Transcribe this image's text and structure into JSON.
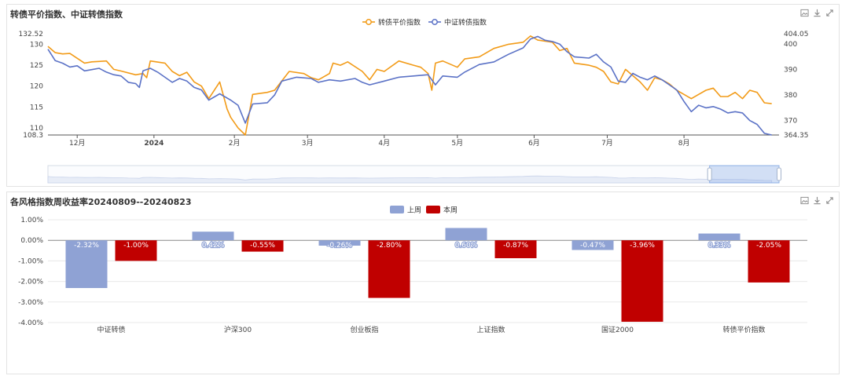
{
  "panel1": {
    "title": "转债平价指数、中证转债指数",
    "tools": [
      "image-icon",
      "download-icon",
      "expand-icon"
    ]
  },
  "panel2": {
    "title": "各风格指数周收益率20240809--20240823",
    "tools": [
      "image-icon",
      "download-icon",
      "expand-icon"
    ]
  },
  "chart_data": [
    {
      "type": "line",
      "legend_position": "top-center",
      "series": [
        {
          "name": "转债平价指数",
          "axis": "left",
          "color": "#f29b18",
          "points": [
            [
              0,
              129.5
            ],
            [
              0.01,
              128.0
            ],
            [
              0.02,
              127.7
            ],
            [
              0.03,
              127.8
            ],
            [
              0.05,
              125.5
            ],
            [
              0.06,
              125.8
            ],
            [
              0.08,
              126.0
            ],
            [
              0.09,
              124.0
            ],
            [
              0.1,
              123.6
            ],
            [
              0.12,
              122.7
            ],
            [
              0.13,
              123.0
            ],
            [
              0.135,
              122.0
            ],
            [
              0.14,
              126.0
            ],
            [
              0.16,
              125.5
            ],
            [
              0.17,
              123.5
            ],
            [
              0.18,
              122.5
            ],
            [
              0.19,
              123.3
            ],
            [
              0.2,
              121.0
            ],
            [
              0.21,
              120.0
            ],
            [
              0.22,
              117.0
            ],
            [
              0.235,
              121.0
            ],
            [
              0.245,
              114.5
            ],
            [
              0.25,
              112.5
            ],
            [
              0.26,
              110.0
            ],
            [
              0.27,
              108.3
            ],
            [
              0.28,
              118.0
            ],
            [
              0.3,
              118.5
            ],
            [
              0.31,
              119.0
            ],
            [
              0.33,
              123.5
            ],
            [
              0.35,
              123.0
            ],
            [
              0.36,
              122.0
            ],
            [
              0.37,
              121.5
            ],
            [
              0.385,
              123.0
            ],
            [
              0.39,
              125.5
            ],
            [
              0.4,
              125.0
            ],
            [
              0.41,
              125.8
            ],
            [
              0.43,
              123.5
            ],
            [
              0.44,
              121.5
            ],
            [
              0.45,
              124.0
            ],
            [
              0.46,
              123.5
            ],
            [
              0.48,
              126.0
            ],
            [
              0.5,
              125.0
            ],
            [
              0.51,
              124.5
            ],
            [
              0.52,
              123.0
            ],
            [
              0.525,
              119.0
            ],
            [
              0.53,
              125.5
            ],
            [
              0.54,
              126.0
            ],
            [
              0.56,
              124.5
            ],
            [
              0.57,
              126.5
            ],
            [
              0.59,
              127.0
            ],
            [
              0.6,
              128.0
            ],
            [
              0.61,
              129.0
            ],
            [
              0.63,
              130.0
            ],
            [
              0.65,
              130.5
            ],
            [
              0.66,
              132.0
            ],
            [
              0.67,
              131.0
            ],
            [
              0.69,
              130.5
            ],
            [
              0.7,
              128.5
            ],
            [
              0.71,
              129.0
            ],
            [
              0.72,
              125.5
            ],
            [
              0.74,
              125.0
            ],
            [
              0.75,
              124.5
            ],
            [
              0.76,
              123.5
            ],
            [
              0.77,
              121.0
            ],
            [
              0.78,
              120.5
            ],
            [
              0.79,
              124.0
            ],
            [
              0.8,
              122.5
            ],
            [
              0.81,
              121.0
            ],
            [
              0.82,
              119.0
            ],
            [
              0.83,
              122.0
            ],
            [
              0.84,
              121.5
            ],
            [
              0.85,
              120.5
            ],
            [
              0.86,
              119.0
            ],
            [
              0.87,
              118.0
            ],
            [
              0.88,
              117.0
            ],
            [
              0.89,
              118.0
            ],
            [
              0.9,
              119.0
            ],
            [
              0.91,
              119.5
            ],
            [
              0.92,
              117.5
            ],
            [
              0.93,
              117.5
            ],
            [
              0.94,
              118.5
            ],
            [
              0.95,
              117.0
            ],
            [
              0.96,
              119.0
            ],
            [
              0.97,
              118.5
            ],
            [
              0.98,
              116.0
            ],
            [
              0.99,
              115.8
            ]
          ]
        },
        {
          "name": "中证转债指数",
          "axis": "right",
          "color": "#5b72c6",
          "points": [
            [
              0,
              398.0
            ],
            [
              0.01,
              393.5
            ],
            [
              0.02,
              392.5
            ],
            [
              0.03,
              391.0
            ],
            [
              0.04,
              391.5
            ],
            [
              0.05,
              389.5
            ],
            [
              0.06,
              390.0
            ],
            [
              0.07,
              390.5
            ],
            [
              0.08,
              389.0
            ],
            [
              0.09,
              388.0
            ],
            [
              0.1,
              387.5
            ],
            [
              0.11,
              385.0
            ],
            [
              0.12,
              384.5
            ],
            [
              0.125,
              383.0
            ],
            [
              0.13,
              389.5
            ],
            [
              0.14,
              390.5
            ],
            [
              0.15,
              389.0
            ],
            [
              0.16,
              387.0
            ],
            [
              0.17,
              385.0
            ],
            [
              0.18,
              386.5
            ],
            [
              0.19,
              385.5
            ],
            [
              0.2,
              383.0
            ],
            [
              0.21,
              382.0
            ],
            [
              0.22,
              378.0
            ],
            [
              0.235,
              380.5
            ],
            [
              0.25,
              378.0
            ],
            [
              0.26,
              376.0
            ],
            [
              0.27,
              369.0
            ],
            [
              0.28,
              376.5
            ],
            [
              0.3,
              377.0
            ],
            [
              0.31,
              380.0
            ],
            [
              0.32,
              385.5
            ],
            [
              0.34,
              387.0
            ],
            [
              0.36,
              386.5
            ],
            [
              0.37,
              385.0
            ],
            [
              0.385,
              386.0
            ],
            [
              0.4,
              385.5
            ],
            [
              0.42,
              386.5
            ],
            [
              0.43,
              385.0
            ],
            [
              0.44,
              384.0
            ],
            [
              0.46,
              385.5
            ],
            [
              0.48,
              387.0
            ],
            [
              0.5,
              387.5
            ],
            [
              0.52,
              388.0
            ],
            [
              0.53,
              384.0
            ],
            [
              0.54,
              387.5
            ],
            [
              0.56,
              387.0
            ],
            [
              0.57,
              389.0
            ],
            [
              0.59,
              392.0
            ],
            [
              0.61,
              393.0
            ],
            [
              0.63,
              396.0
            ],
            [
              0.65,
              398.5
            ],
            [
              0.66,
              402.0
            ],
            [
              0.67,
              403.0
            ],
            [
              0.68,
              401.5
            ],
            [
              0.69,
              401.0
            ],
            [
              0.7,
              400.0
            ],
            [
              0.71,
              397.0
            ],
            [
              0.72,
              395.0
            ],
            [
              0.74,
              394.5
            ],
            [
              0.75,
              396.0
            ],
            [
              0.76,
              393.0
            ],
            [
              0.77,
              391.0
            ],
            [
              0.78,
              385.5
            ],
            [
              0.79,
              385.0
            ],
            [
              0.8,
              388.5
            ],
            [
              0.81,
              387.0
            ],
            [
              0.82,
              386.0
            ],
            [
              0.83,
              387.5
            ],
            [
              0.84,
              386.0
            ],
            [
              0.85,
              384.0
            ],
            [
              0.86,
              382.0
            ],
            [
              0.87,
              377.5
            ],
            [
              0.88,
              373.5
            ],
            [
              0.89,
              376.0
            ],
            [
              0.9,
              375.0
            ],
            [
              0.91,
              375.5
            ],
            [
              0.92,
              374.5
            ],
            [
              0.93,
              373.0
            ],
            [
              0.94,
              373.5
            ],
            [
              0.95,
              373.0
            ],
            [
              0.96,
              370.0
            ],
            [
              0.97,
              368.5
            ],
            [
              0.98,
              365.0
            ],
            [
              0.99,
              364.35
            ]
          ]
        }
      ],
      "x_ticks": [
        {
          "label": "12月",
          "pos": 0.04,
          "bold": false
        },
        {
          "label": "2024",
          "pos": 0.145,
          "bold": true
        },
        {
          "label": "2月",
          "pos": 0.255,
          "bold": false
        },
        {
          "label": "3月",
          "pos": 0.355,
          "bold": false
        },
        {
          "label": "4月",
          "pos": 0.46,
          "bold": false
        },
        {
          "label": "5月",
          "pos": 0.56,
          "bold": false
        },
        {
          "label": "6月",
          "pos": 0.665,
          "bold": false
        },
        {
          "label": "7月",
          "pos": 0.765,
          "bold": false
        },
        {
          "label": "8月",
          "pos": 0.87,
          "bold": false
        }
      ],
      "y_left": {
        "min": 108.3,
        "max": 132.52,
        "ticks": [
          "108.3",
          "110",
          "115",
          "120",
          "125",
          "130",
          "132.52"
        ]
      },
      "y_right": {
        "min": 364.35,
        "max": 404.05,
        "ticks": [
          "364.35",
          "370",
          "380",
          "390",
          "400",
          "404.05"
        ]
      },
      "zoom_window": [
        0.905,
        1.0
      ]
    },
    {
      "type": "bar",
      "legend_position": "top-center",
      "categories": [
        "中证转债",
        "沪深300",
        "创业板指",
        "上证指数",
        "国证2000",
        "转债平价指数"
      ],
      "series": [
        {
          "name": "上周",
          "color": "#8fa2d4",
          "values": [
            -2.32,
            0.42,
            -0.26,
            0.6,
            -0.47,
            0.33
          ],
          "labels": [
            "-2.32%",
            "0.42%",
            "-0.26%",
            "0.60%",
            "-0.47%",
            "0.33%"
          ]
        },
        {
          "name": "本周",
          "color": "#c00000",
          "values": [
            -1.0,
            -0.55,
            -2.8,
            -0.87,
            -3.96,
            -2.05
          ],
          "labels": [
            "-1.00%",
            "-0.55%",
            "-2.80%",
            "-0.87%",
            "-3.96%",
            "-2.05%"
          ]
        }
      ],
      "y_ticks": [
        "1.00%",
        "0.00%",
        "-1.00%",
        "-2.00%",
        "-3.00%",
        "-4.00%"
      ],
      "ylim": [
        -4,
        1
      ]
    }
  ]
}
